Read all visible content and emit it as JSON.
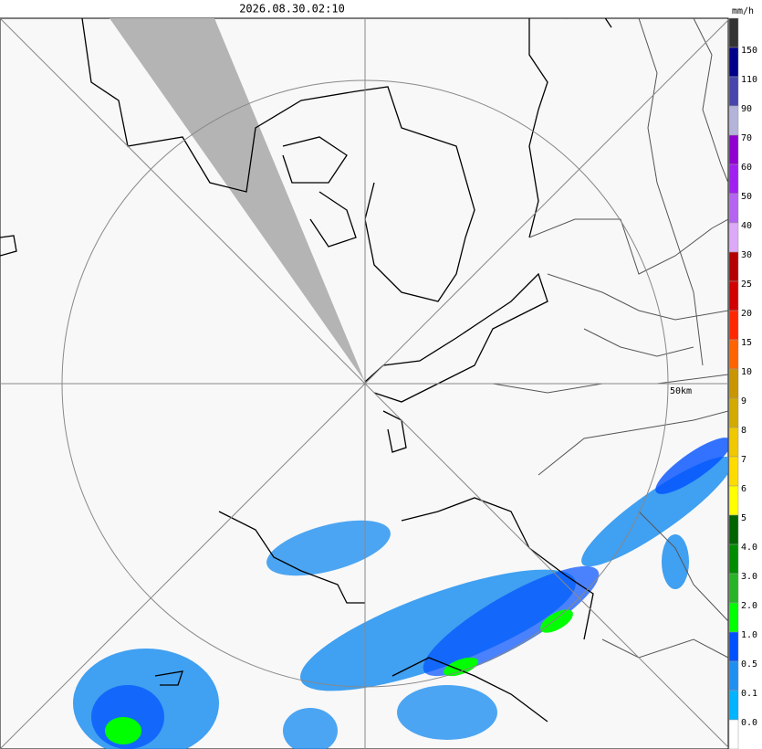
{
  "header": {
    "timestamp": "2026.08.30.02:10",
    "unit": "mm/h"
  },
  "map": {
    "range_label": "50km"
  },
  "legend": {
    "labels": [
      "150",
      "110",
      "90",
      "70",
      "60",
      "50",
      "40",
      "30",
      "25",
      "20",
      "15",
      "10",
      "9",
      "8",
      "7",
      "6",
      "5",
      "4.0",
      "3.0",
      "2.0",
      "1.0",
      "0.5",
      "0.1",
      "0.0"
    ],
    "colors": [
      "#333333",
      "#00008b",
      "#4646ad",
      "#b4b4da",
      "#9000d0",
      "#a020f0",
      "#b464f0",
      "#dcaaf8",
      "#b40000",
      "#d20000",
      "#ff2800",
      "#ff6400",
      "#c89600",
      "#d2aa00",
      "#f0c800",
      "#ffdc00",
      "#ffff00",
      "#006400",
      "#008c00",
      "#28b428",
      "#00ff00",
      "#0050ff",
      "#2090f0",
      "#00b4ff",
      "#ffffff"
    ]
  }
}
